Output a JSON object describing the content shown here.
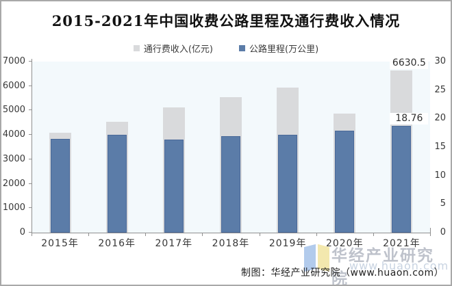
{
  "title": "2015-2021年中国收费公路里程及通行费收入情况",
  "legend": [
    {
      "label": "通行费收入(亿元)",
      "color": "#d9dadc"
    },
    {
      "label": "公路里程(万公里)",
      "color": "#5b7ca8"
    }
  ],
  "caption": "制图：华经产业研究院（www.huaon.com）",
  "watermark": {
    "brand": "华经产业研究院",
    "url": "www.huaon.com"
  },
  "colors": {
    "toll_revenue_bar": "#d9dadc",
    "road_mileage_bar": "#5b7ca8",
    "plot_background": "#f3f9fc",
    "axis": "#8f8f8f",
    "frame_border": "#a8a8a8"
  },
  "chart_data": {
    "type": "bar",
    "title": "2015-2021年中国收费公路里程及通行费收入情况",
    "categories": [
      "2015年",
      "2016年",
      "2017年",
      "2018年",
      "2019年",
      "2020年",
      "2021年"
    ],
    "series": [
      {
        "name": "通行费收入(亿元)",
        "axis": "left",
        "color": "#d9dadc",
        "values": [
          4097.8,
          4548.5,
          5130.2,
          5552.4,
          5937.9,
          4868.2,
          6630.5
        ]
      },
      {
        "name": "公路里程(万公里)",
        "axis": "right",
        "color": "#5b7ca8",
        "values": [
          16.44,
          17.11,
          16.37,
          16.88,
          17.11,
          17.92,
          18.76
        ]
      }
    ],
    "left_axis": {
      "min": 0,
      "max": 7000,
      "ticks": [
        0,
        1000,
        2000,
        3000,
        4000,
        5000,
        6000,
        7000
      ]
    },
    "right_axis": {
      "min": 0,
      "max": 30,
      "ticks": [
        0,
        5,
        10,
        15,
        20,
        25,
        30
      ]
    },
    "annotations": [
      {
        "col": 6,
        "series": 0,
        "text": "6630.5"
      },
      {
        "col": 6,
        "series": 1,
        "text": "18.76"
      }
    ],
    "legend_position": "top",
    "grid": false
  }
}
